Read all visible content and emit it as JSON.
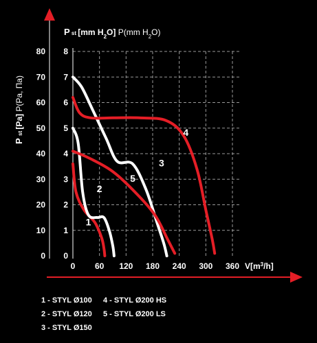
{
  "chart_data": {
    "type": "line",
    "title": "",
    "left_axis": {
      "label_main": "P",
      "label_sub": "st",
      "label_unit": "[Pa]",
      "label_alt": "P(Pa, Па)",
      "ticks": [
        0,
        10,
        20,
        30,
        40,
        50,
        60,
        70,
        80
      ],
      "range": [
        0,
        80
      ]
    },
    "right_axis": {
      "label_main": "P",
      "label_sub": "st",
      "label_unit_pre": "[mm H",
      "label_unit_sub": "2",
      "label_unit_post": "O]",
      "label_alt_pre": "P(mm H",
      "label_alt_sub": "2",
      "label_alt_post": "O)",
      "ticks": [
        0,
        1,
        2,
        3,
        4,
        5,
        6,
        7,
        8
      ],
      "range": [
        0,
        8
      ]
    },
    "x_axis": {
      "label_pre": "V[m",
      "label_sup": "3",
      "label_post": "/h]",
      "ticks": [
        0,
        60,
        120,
        180,
        240,
        300,
        360
      ],
      "range": [
        0,
        380
      ]
    },
    "grid": true,
    "colors": {
      "white": "#ffffff",
      "red": "#e41e26",
      "background": "#000000",
      "grid": "#9a9a9a"
    },
    "series": [
      {
        "id": "1",
        "color": "red",
        "points": [
          [
            0,
            36
          ],
          [
            7,
            25
          ],
          [
            25,
            18
          ],
          [
            50,
            13
          ],
          [
            65,
            7
          ],
          [
            70,
            3
          ],
          [
            72,
            0
          ]
        ]
      },
      {
        "id": "2",
        "color": "white",
        "points": [
          [
            0,
            50
          ],
          [
            12,
            44
          ],
          [
            22,
            25
          ],
          [
            35,
            16
          ],
          [
            55,
            15
          ],
          [
            70,
            15
          ],
          [
            82,
            10
          ],
          [
            90,
            4
          ],
          [
            93,
            0
          ]
        ]
      },
      {
        "id": "3",
        "color": "white",
        "points": [
          [
            0,
            70
          ],
          [
            20,
            66
          ],
          [
            45,
            57
          ],
          [
            75,
            46
          ],
          [
            100,
            37
          ],
          [
            135,
            36
          ],
          [
            165,
            26
          ],
          [
            190,
            13
          ],
          [
            205,
            5
          ],
          [
            212,
            0
          ]
        ]
      },
      {
        "id": "4",
        "color": "red",
        "points": [
          [
            0,
            62
          ],
          [
            15,
            56
          ],
          [
            40,
            54
          ],
          [
            90,
            54
          ],
          [
            150,
            54
          ],
          [
            210,
            53
          ],
          [
            250,
            47
          ],
          [
            280,
            34
          ],
          [
            300,
            18
          ],
          [
            315,
            6
          ],
          [
            320,
            1
          ]
        ]
      },
      {
        "id": "5",
        "color": "red",
        "points": [
          [
            0,
            41
          ],
          [
            40,
            38
          ],
          [
            90,
            33
          ],
          [
            140,
            25
          ],
          [
            185,
            16
          ],
          [
            215,
            6
          ],
          [
            230,
            1
          ]
        ]
      }
    ],
    "series_labels": [
      {
        "text": "1",
        "x": 35,
        "y": 12
      },
      {
        "text": "2",
        "x": 60,
        "y": 25
      },
      {
        "text": "3",
        "x": 200,
        "y": 35
      },
      {
        "text": "4",
        "x": 255,
        "y": 47
      },
      {
        "text": "5",
        "x": 135,
        "y": 29
      }
    ],
    "legend": [
      "1 - STYL Ø100",
      "2 - STYL Ø120",
      "3 - STYL Ø150",
      "4 - STYL Ø200 HS",
      "5 - STYL Ø200 LS"
    ]
  }
}
